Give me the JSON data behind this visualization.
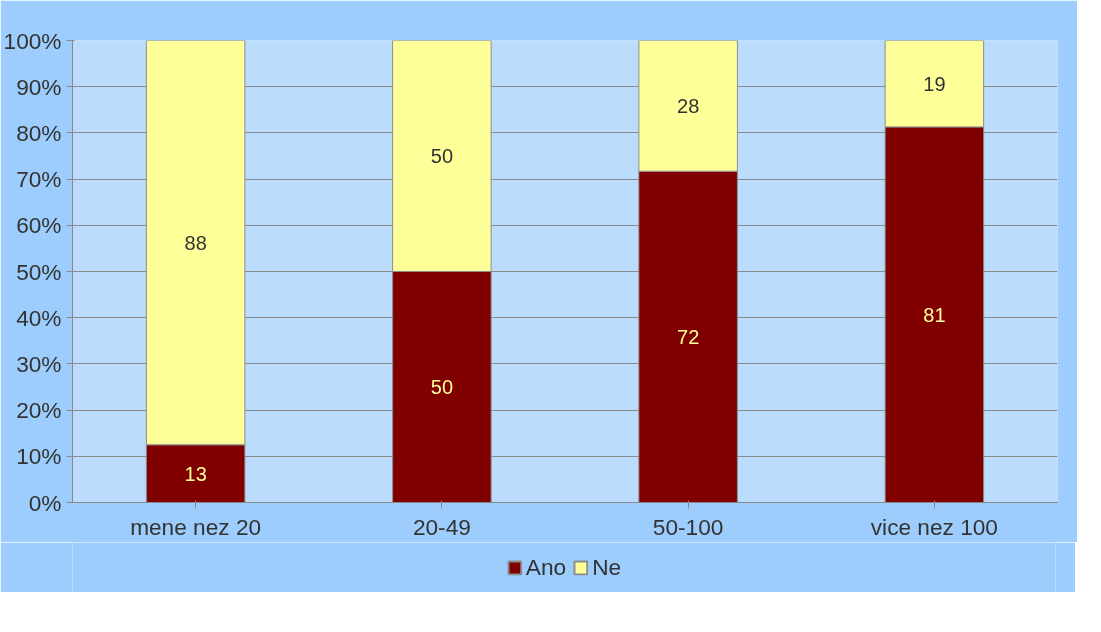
{
  "chart_data": {
    "type": "bar",
    "stacked": true,
    "categories": [
      "mene nez 20",
      "20-49",
      "50-100",
      "vice nez 100"
    ],
    "series": [
      {
        "name": "Ano",
        "color": "#800000",
        "values": [
          12.5,
          50,
          71.7,
          81.3
        ],
        "value_labels": [
          "13",
          "50",
          "72",
          "81"
        ]
      },
      {
        "name": "Ne",
        "color": "#ffff99",
        "values": [
          87.5,
          50,
          28.3,
          18.7
        ],
        "value_labels": [
          "88",
          "50",
          "28",
          "19"
        ]
      }
    ],
    "ylim": [
      0,
      100
    ],
    "yticks": [
      {
        "value": 0,
        "label": "0%"
      },
      {
        "value": 10,
        "label": "10%"
      },
      {
        "value": 20,
        "label": "20%"
      },
      {
        "value": 30,
        "label": "30%"
      },
      {
        "value": 40,
        "label": "40%"
      },
      {
        "value": 50,
        "label": "50%"
      },
      {
        "value": 60,
        "label": "60%"
      },
      {
        "value": 70,
        "label": "70%"
      },
      {
        "value": 80,
        "label": "80%"
      },
      {
        "value": 90,
        "label": "90%"
      },
      {
        "value": 100,
        "label": "100%"
      }
    ],
    "grid": "y",
    "legend": "bottom"
  }
}
